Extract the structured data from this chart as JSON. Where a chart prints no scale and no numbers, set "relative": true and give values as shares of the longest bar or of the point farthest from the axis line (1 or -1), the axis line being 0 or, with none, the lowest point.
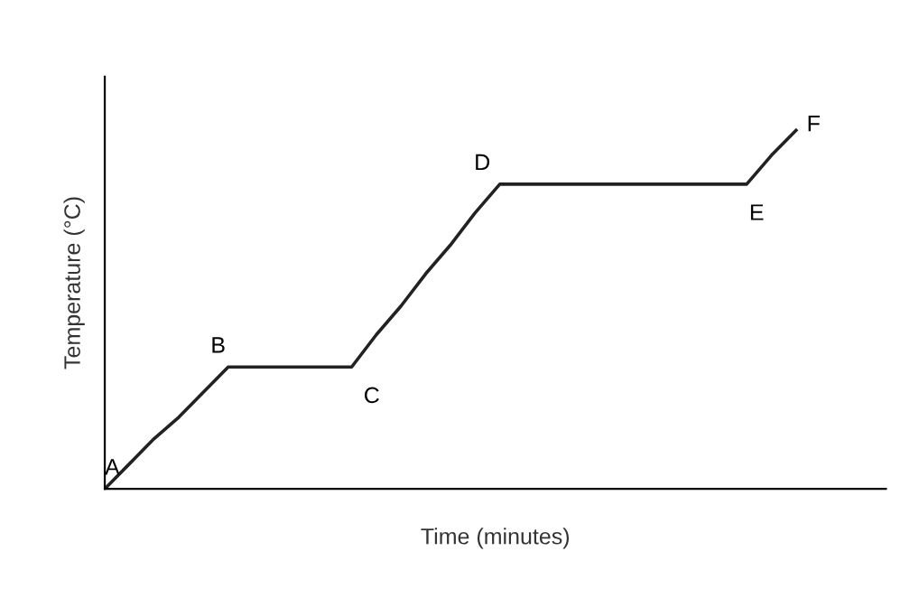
{
  "chart_data": {
    "type": "line",
    "relative": true,
    "xlabel": "Time (minutes)",
    "ylabel": "Temperature (°C)",
    "categories": [
      null,
      null,
      null,
      null,
      null,
      null,
      null,
      null,
      null,
      null,
      null,
      null,
      null,
      null,
      null,
      null,
      null,
      null,
      null,
      null,
      null,
      null,
      null,
      null,
      null,
      null,
      null,
      null,
      null
    ],
    "series": [
      {
        "color": "#222222",
        "values": [
          0,
          0.07,
          0.14,
          0.2,
          0.27,
          0.34,
          0.34,
          0.34,
          0.34,
          0.34,
          0.34,
          0.43,
          0.51,
          0.6,
          0.68,
          0.77,
          0.85,
          0.85,
          0.85,
          0.85,
          0.85,
          0.85,
          0.85,
          0.85,
          0.85,
          0.85,
          0.85,
          0.93,
          1.0
        ]
      }
    ],
    "annotations": [
      "A",
      "B",
      "C",
      "D",
      "E",
      "F"
    ],
    "legend": false,
    "marker": "none",
    "line_style": "solid"
  }
}
